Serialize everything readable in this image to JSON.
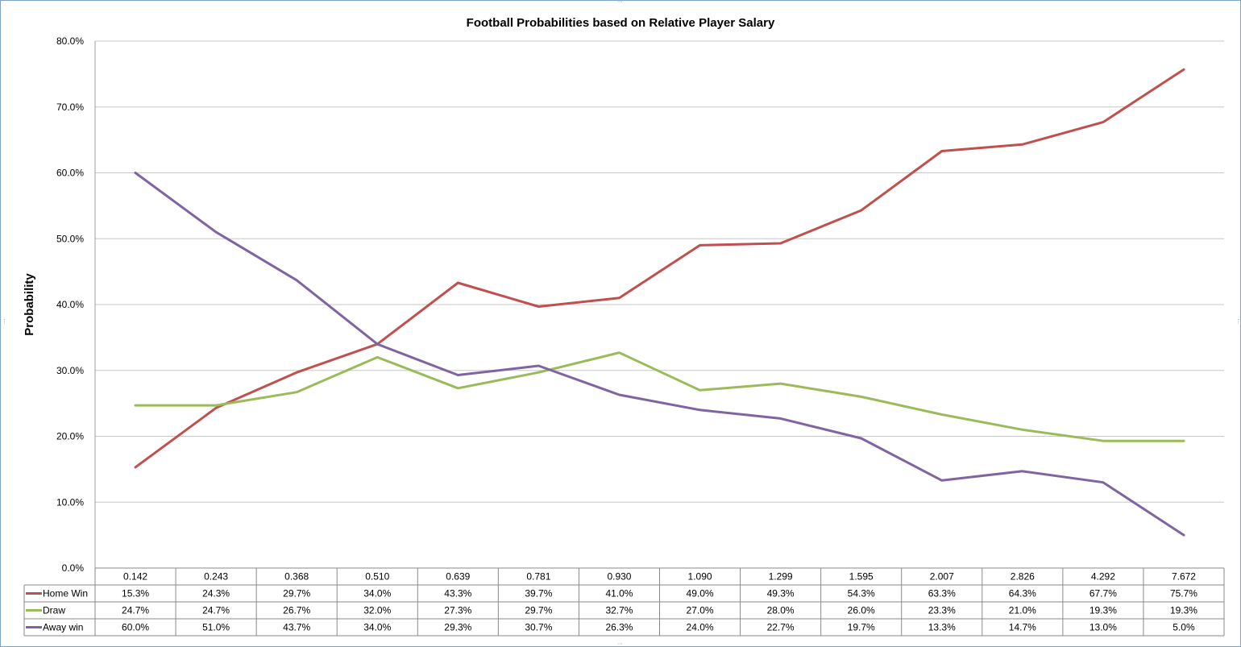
{
  "chart_data": {
    "type": "line",
    "title": "Football Probabilities based on Relative Player Salary",
    "xlabel": "",
    "ylabel": "Probability",
    "ylim": [
      0,
      80
    ],
    "y_ticks": [
      "0.0%",
      "10.0%",
      "20.0%",
      "30.0%",
      "40.0%",
      "50.0%",
      "60.0%",
      "70.0%",
      "80.0%"
    ],
    "grid": true,
    "legend": "data-table-left",
    "categories": [
      "0.142",
      "0.243",
      "0.368",
      "0.510",
      "0.639",
      "0.781",
      "0.930",
      "1.090",
      "1.299",
      "1.595",
      "2.007",
      "2.826",
      "4.292",
      "7.672"
    ],
    "series": [
      {
        "name": "Home Win",
        "color": "#c0504d",
        "values": [
          15.3,
          24.3,
          29.7,
          34.0,
          43.3,
          39.7,
          41.0,
          49.0,
          49.3,
          54.3,
          63.3,
          64.3,
          67.7,
          75.7
        ],
        "labels": [
          "15.3%",
          "24.3%",
          "29.7%",
          "34.0%",
          "43.3%",
          "39.7%",
          "41.0%",
          "49.0%",
          "49.3%",
          "54.3%",
          "63.3%",
          "64.3%",
          "67.7%",
          "75.7%"
        ]
      },
      {
        "name": "Draw",
        "color": "#9bbb59",
        "values": [
          24.7,
          24.7,
          26.7,
          32.0,
          27.3,
          29.7,
          32.7,
          27.0,
          28.0,
          26.0,
          23.3,
          21.0,
          19.3,
          19.3
        ],
        "labels": [
          "24.7%",
          "24.7%",
          "26.7%",
          "32.0%",
          "27.3%",
          "29.7%",
          "32.7%",
          "27.0%",
          "28.0%",
          "26.0%",
          "23.3%",
          "21.0%",
          "19.3%",
          "19.3%"
        ]
      },
      {
        "name": "Away win",
        "color": "#8064a2",
        "values": [
          60.0,
          51.0,
          43.7,
          34.0,
          29.3,
          30.7,
          26.3,
          24.0,
          22.7,
          19.7,
          13.3,
          14.7,
          13.0,
          5.0
        ],
        "labels": [
          "60.0%",
          "51.0%",
          "43.7%",
          "34.0%",
          "29.3%",
          "30.7%",
          "26.3%",
          "24.0%",
          "22.7%",
          "19.7%",
          "13.3%",
          "14.7%",
          "13.0%",
          "5.0%"
        ]
      }
    ]
  }
}
